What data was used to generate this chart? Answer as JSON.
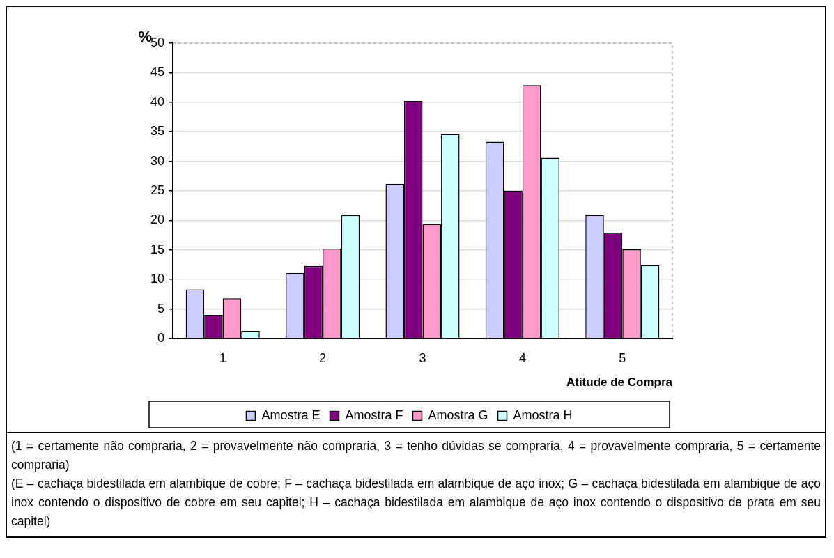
{
  "chart_data": {
    "type": "bar",
    "ylabel": "%",
    "xlabel": "Atitude de Compra",
    "categories": [
      "1",
      "2",
      "3",
      "4",
      "5"
    ],
    "series": [
      {
        "name": "Amostra E",
        "color": "#ccccff",
        "values": [
          8.3,
          11.1,
          26.2,
          33.3,
          20.9
        ]
      },
      {
        "name": "Amostra F",
        "color": "#800080",
        "values": [
          4.0,
          12.3,
          40.2,
          25.0,
          17.9
        ]
      },
      {
        "name": "Amostra G",
        "color": "#ff99cc",
        "values": [
          6.8,
          15.2,
          19.4,
          42.9,
          15.1
        ]
      },
      {
        "name": "Amostra H",
        "color": "#ccffff",
        "values": [
          1.3,
          20.9,
          34.6,
          30.6,
          12.4
        ]
      }
    ],
    "ylim": [
      0,
      50
    ],
    "yticks": [
      0,
      5,
      10,
      15,
      20,
      25,
      30,
      35,
      40,
      45,
      50
    ],
    "grid": "y",
    "legend": "bottom",
    "annotations": [
      "(1 = certamente não compraria, 2 = provavelmente não compraria, 3 = tenho dúvidas se compraria, 4 = provavelmente compraria, 5 = certamente compraria)",
      "(E – cachaça bidestilada em alambique de cobre; F – cachaça bidestilada em alambique de aço inox; G – cachaça bidestilada em alambique de aço inox contendo o dispositivo de cobre em seu capitel; H – cachaça bidestilada em alambique de aço inox contendo o dispositivo de prata em seu capitel)"
    ]
  }
}
